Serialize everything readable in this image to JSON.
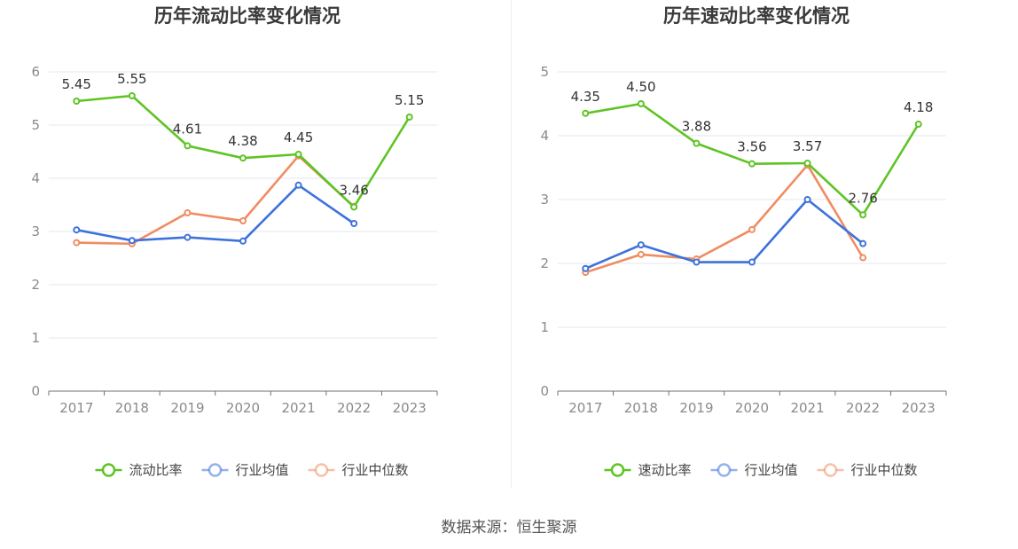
{
  "source_label": "数据来源：恒生聚源",
  "chart_data": [
    {
      "type": "line",
      "title": "历年流动比率变化情况",
      "categories": [
        "2017",
        "2018",
        "2019",
        "2020",
        "2021",
        "2022",
        "2023"
      ],
      "ylim": [
        0,
        6
      ],
      "yticks": [
        "0",
        "1",
        "2",
        "3",
        "4",
        "5",
        "6"
      ],
      "grid": true,
      "legend_position": "bottom-center",
      "series": [
        {
          "name": "流动比率",
          "color": "#5ec424",
          "values": [
            5.45,
            5.55,
            4.61,
            4.38,
            4.45,
            3.46,
            5.15
          ],
          "labels": [
            "5.45",
            "5.55",
            "4.61",
            "4.38",
            "4.45",
            "3.46",
            "5.15"
          ]
        },
        {
          "name": "行业均值",
          "color": "#3d72dc",
          "values": [
            3.03,
            2.83,
            2.89,
            2.82,
            3.87,
            3.15,
            null
          ]
        },
        {
          "name": "行业中位数",
          "color": "#f08c62",
          "values": [
            2.79,
            2.77,
            3.35,
            3.2,
            4.42,
            3.47,
            null
          ]
        }
      ]
    },
    {
      "type": "line",
      "title": "历年速动比率变化情况",
      "categories": [
        "2017",
        "2018",
        "2019",
        "2020",
        "2021",
        "2022",
        "2023"
      ],
      "ylim": [
        0,
        5
      ],
      "yticks": [
        "0",
        "1",
        "2",
        "3",
        "4",
        "5"
      ],
      "grid": true,
      "legend_position": "bottom-center",
      "series": [
        {
          "name": "速动比率",
          "color": "#5ec424",
          "values": [
            4.35,
            4.5,
            3.88,
            3.56,
            3.57,
            2.76,
            4.18
          ],
          "labels": [
            "4.35",
            "4.50",
            "3.88",
            "3.56",
            "3.57",
            "2.76",
            "4.18"
          ]
        },
        {
          "name": "行业均值",
          "color": "#3d72dc",
          "values": [
            1.92,
            2.29,
            2.02,
            2.02,
            3.0,
            2.31,
            null
          ]
        },
        {
          "name": "行业中位数",
          "color": "#f08c62",
          "values": [
            1.86,
            2.14,
            2.07,
            2.53,
            3.54,
            2.09,
            null
          ]
        }
      ]
    }
  ]
}
